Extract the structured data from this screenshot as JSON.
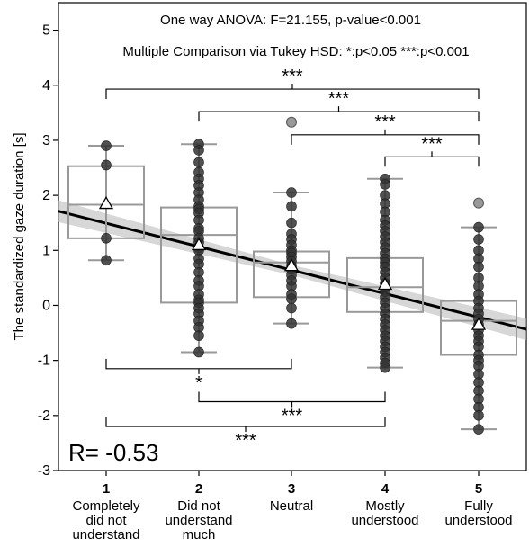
{
  "chart_data": {
    "type": "box",
    "ylabel": "The standardized gaze duration [s]",
    "ylim": [
      -3,
      5.5
    ],
    "yticks": [
      -3,
      -2,
      -1,
      0,
      1,
      2,
      3,
      4,
      5
    ],
    "ytick_labels": [
      "-3",
      "-2",
      "-1",
      "0",
      "1",
      "2",
      "3",
      "4",
      "5"
    ],
    "annotations": [
      "One way ANOVA:  F=21.155, p-value<0.001",
      "Multiple Comparison via Tukey HSD: *:p<0.05 ***:p<0.001"
    ],
    "r_label": "R= -0.53",
    "categories": [
      {
        "num": "1",
        "lines": [
          "Completely",
          "did not",
          "understand"
        ],
        "box": {
          "q1": 1.22,
          "median": 1.83,
          "q3": 2.53,
          "whisker_low": 0.82,
          "whisker_high": 2.9,
          "mean": 1.85
        },
        "points": [
          2.9,
          2.55,
          1.22,
          0.82
        ],
        "outliers": []
      },
      {
        "num": "2",
        "lines": [
          "Did not",
          "understand",
          "much"
        ],
        "box": {
          "q1": 0.05,
          "median": 1.28,
          "q3": 1.78,
          "whisker_low": -0.85,
          "whisker_high": 2.93,
          "mean": 1.1
        },
        "points": [
          2.93,
          2.82,
          2.6,
          2.42,
          2.3,
          2.18,
          2.05,
          1.92,
          1.8,
          1.75,
          1.68,
          1.55,
          1.4,
          1.35,
          1.22,
          1.15,
          1.05,
          1.0,
          0.85,
          0.75,
          0.6,
          0.45,
          0.35,
          0.2,
          0.1,
          0.05,
          -0.05,
          -0.15,
          -0.28,
          -0.4,
          -0.55,
          -0.85
        ],
        "outliers": []
      },
      {
        "num": "3",
        "lines": [
          "Neutral"
        ],
        "box": {
          "q1": 0.15,
          "median": 0.78,
          "q3": 0.98,
          "whisker_low": -0.33,
          "whisker_high": 2.05,
          "mean": 0.72
        },
        "points": [
          2.05,
          1.8,
          1.5,
          1.3,
          1.2,
          1.1,
          1.0,
          0.95,
          0.88,
          0.8,
          0.72,
          0.65,
          0.55,
          0.45,
          0.35,
          0.2,
          0.12,
          -0.05,
          -0.33
        ],
        "outliers": [
          3.33
        ]
      },
      {
        "num": "4",
        "lines": [
          "Mostly",
          "understood"
        ],
        "box": {
          "q1": -0.12,
          "median": 0.33,
          "q3": 0.86,
          "whisker_low": -1.13,
          "whisker_high": 2.3,
          "mean": 0.38
        },
        "points": [
          2.3,
          2.2,
          2.0,
          1.85,
          1.7,
          1.55,
          1.45,
          1.35,
          1.25,
          1.15,
          1.05,
          0.95,
          0.85,
          0.78,
          0.7,
          0.6,
          0.5,
          0.4,
          0.33,
          0.25,
          0.15,
          0.05,
          -0.05,
          -0.15,
          -0.25,
          -0.35,
          -0.45,
          -0.55,
          -0.65,
          -0.75,
          -0.85,
          -0.95,
          -1.05,
          -1.13
        ],
        "outliers": []
      },
      {
        "num": "5",
        "lines": [
          "Fully",
          "understood"
        ],
        "box": {
          "q1": -0.9,
          "median": -0.28,
          "q3": 0.08,
          "whisker_low": -2.25,
          "whisker_high": 1.42,
          "mean": -0.35
        },
        "points": [
          1.42,
          1.2,
          1.0,
          0.85,
          0.7,
          0.5,
          0.35,
          0.2,
          0.08,
          -0.05,
          -0.15,
          -0.25,
          -0.35,
          -0.45,
          -0.55,
          -0.65,
          -0.75,
          -0.9,
          -1.0,
          -1.1,
          -1.25,
          -1.4,
          -1.55,
          -1.7,
          -1.85,
          -2.0,
          -2.25
        ],
        "outliers": [
          1.86
        ]
      }
    ],
    "regression": {
      "x_start": 0.0,
      "y_start": 1.92,
      "x_end": 5.55,
      "y_end": -0.45,
      "band_half_width": 0.2
    },
    "comparisons_top": [
      {
        "from": "1",
        "to": "5",
        "y": 3.93,
        "label": "***"
      },
      {
        "from": "2",
        "to": "5",
        "y": 3.52,
        "label": "***"
      },
      {
        "from": "3",
        "to": "5",
        "y": 3.1,
        "label": "***"
      },
      {
        "from": "4",
        "to": "5",
        "y": 2.7,
        "label": "***"
      }
    ],
    "comparisons_bottom": [
      {
        "from": "1",
        "to": "3",
        "y": -1.15,
        "label": "*"
      },
      {
        "from": "2",
        "to": "4",
        "y": -1.75,
        "label": "***"
      },
      {
        "from": "1",
        "to": "4",
        "y": -2.2,
        "label": "***"
      }
    ]
  }
}
